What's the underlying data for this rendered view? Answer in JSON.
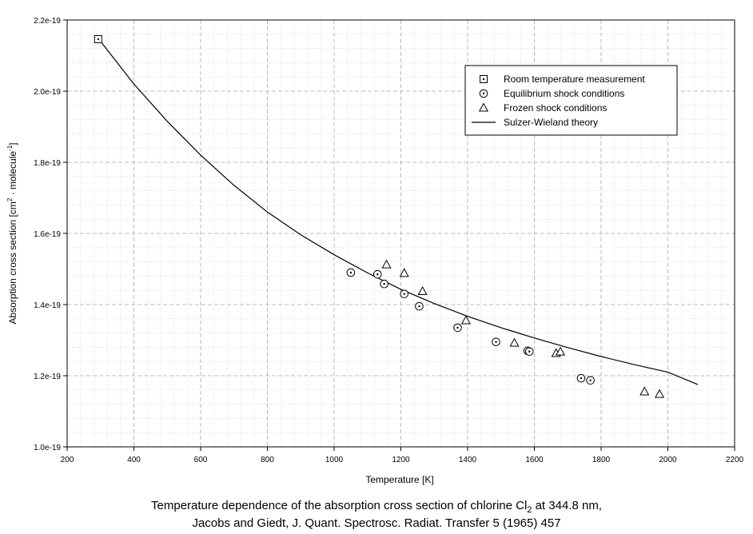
{
  "chart_data": {
    "type": "scatter",
    "title": "",
    "xlabel": "Temperature [K]",
    "ylabel": {
      "prefix": "Absorption cross section [cm",
      "exp1": "2",
      "middle": " · molecule",
      "exp2": "-1",
      "suffix": "]"
    },
    "xlim": [
      200,
      2200
    ],
    "ylim": [
      1e-19,
      2.2e-19
    ],
    "x_ticks": [
      200,
      400,
      600,
      800,
      1000,
      1200,
      1400,
      1600,
      1800,
      2000,
      2200
    ],
    "y_ticks": [
      1e-19,
      1.2e-19,
      1.4e-19,
      1.6e-19,
      1.8e-19,
      2e-19,
      2.2e-19
    ],
    "x_tick_labels": [
      "200",
      "400",
      "600",
      "800",
      "1000",
      "1200",
      "1400",
      "1600",
      "1800",
      "2000",
      "2200"
    ],
    "y_tick_labels": [
      "1.0e-19",
      "1.2e-19",
      "1.4e-19",
      "1.6e-19",
      "1.8e-19",
      "2.0e-19",
      "2.2e-19"
    ],
    "grid": true,
    "legend_position": "top-right",
    "series": [
      {
        "name": "Room temperature measurement",
        "marker": "square-dot",
        "points": [
          [
            293,
            2.146e-19
          ]
        ]
      },
      {
        "name": "Equilibrium shock conditions",
        "marker": "circle-dot",
        "points": [
          [
            1050,
            1.49e-19
          ],
          [
            1130,
            1.485e-19
          ],
          [
            1150,
            1.458e-19
          ],
          [
            1210,
            1.43e-19
          ],
          [
            1255,
            1.395e-19
          ],
          [
            1370,
            1.335e-19
          ],
          [
            1485,
            1.295e-19
          ],
          [
            1580,
            1.27e-19
          ],
          [
            1585,
            1.268e-19
          ],
          [
            1740,
            1.193e-19
          ],
          [
            1768,
            1.187e-19
          ]
        ]
      },
      {
        "name": "Frozen shock conditions",
        "marker": "triangle",
        "points": [
          [
            1157,
            1.512e-19
          ],
          [
            1210,
            1.488e-19
          ],
          [
            1265,
            1.437e-19
          ],
          [
            1395,
            1.355e-19
          ],
          [
            1540,
            1.292e-19
          ],
          [
            1665,
            1.263e-19
          ],
          [
            1678,
            1.267e-19
          ],
          [
            1930,
            1.155e-19
          ],
          [
            1975,
            1.148e-19
          ]
        ]
      },
      {
        "name": "Sulzer-Wieland theory",
        "marker": "line",
        "points": [
          [
            300,
            2.14e-19
          ],
          [
            400,
            2.02e-19
          ],
          [
            500,
            1.915e-19
          ],
          [
            600,
            1.82e-19
          ],
          [
            700,
            1.735e-19
          ],
          [
            800,
            1.66e-19
          ],
          [
            900,
            1.596e-19
          ],
          [
            1000,
            1.54e-19
          ],
          [
            1100,
            1.489e-19
          ],
          [
            1200,
            1.443e-19
          ],
          [
            1300,
            1.403e-19
          ],
          [
            1400,
            1.367e-19
          ],
          [
            1500,
            1.335e-19
          ],
          [
            1600,
            1.306e-19
          ],
          [
            1700,
            1.279e-19
          ],
          [
            1800,
            1.254e-19
          ],
          [
            1900,
            1.231e-19
          ],
          [
            2000,
            1.21e-19
          ],
          [
            2090,
            1.175e-19
          ]
        ]
      }
    ]
  },
  "caption": {
    "line1_prefix": "Temperature dependence of the absorption cross section of chlorine Cl",
    "line1_sub": "2",
    "line1_suffix": " at 344.8 nm,",
    "line2": "Jacobs and Giedt, J. Quant. Spectrosc. Radiat. Transfer 5 (1965) 457"
  }
}
